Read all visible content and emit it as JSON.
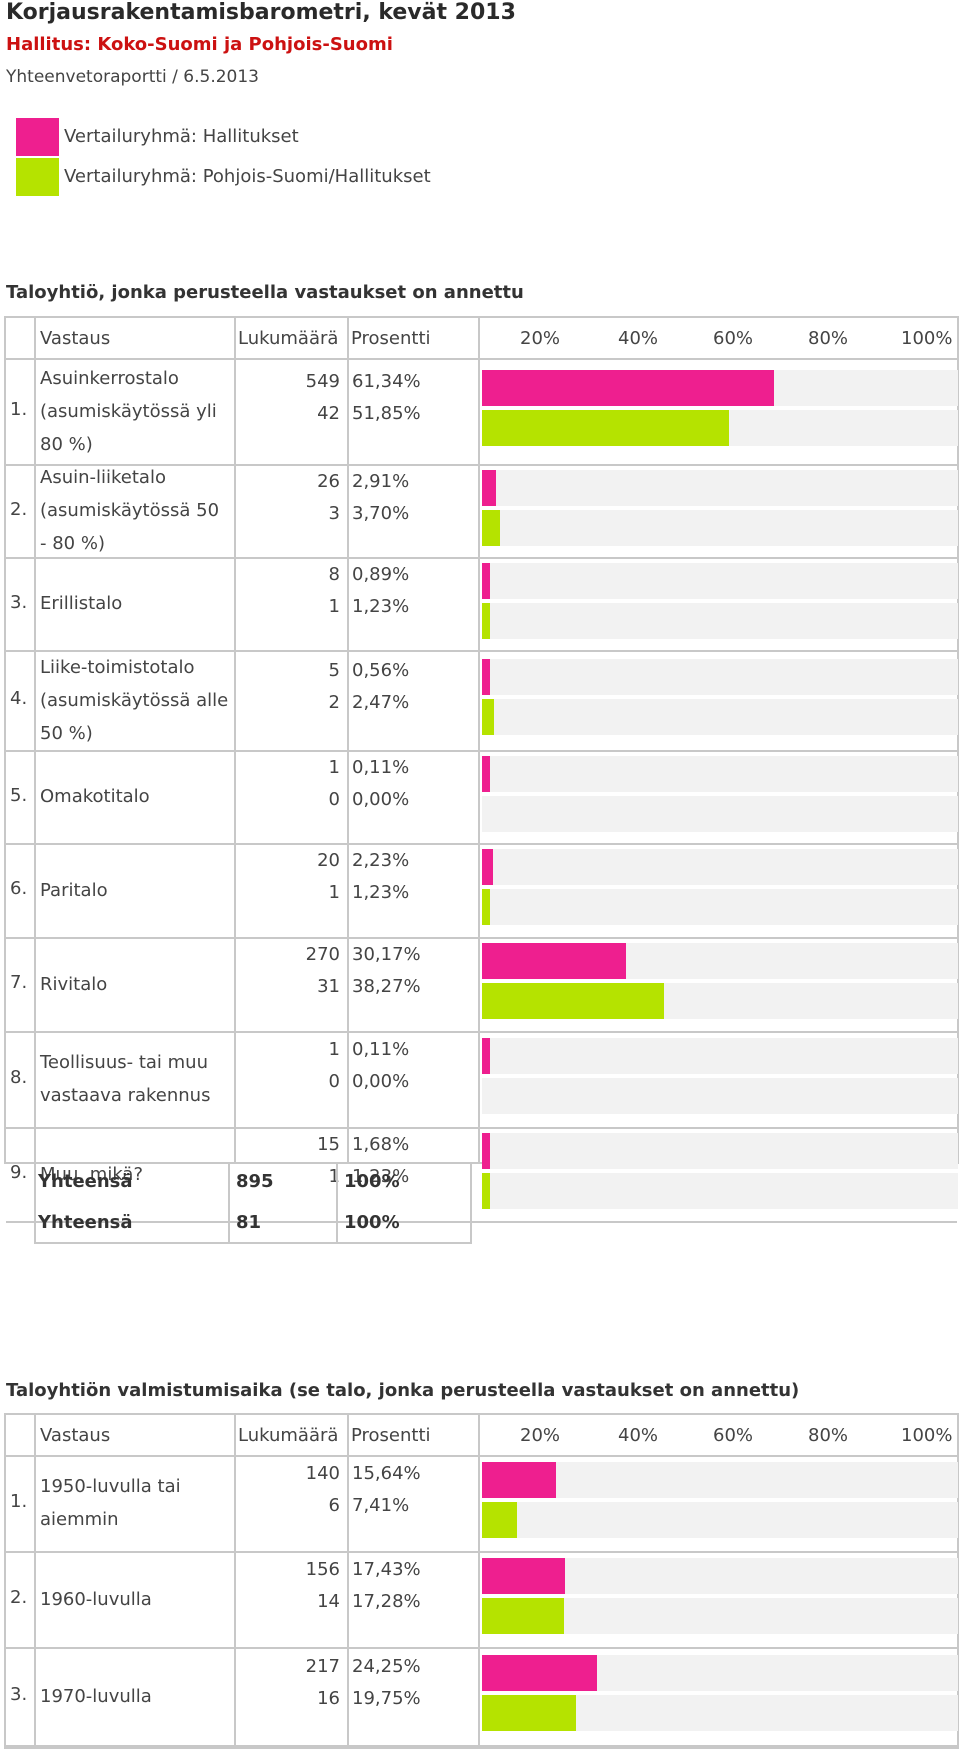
{
  "title": "Korjausrakentamisbarometri, kevät 2013",
  "subtitle": "Hallitus: Koko-Suomi ja Pohjois-Suomi",
  "report_line": "Yhteenvetoraportti / 6.5.2013",
  "legend": [
    {
      "label": "Vertailuryhmä: Hallitukset",
      "color": "#ee1f8f"
    },
    {
      "label": "Vertailuryhmä: Pohjois-Suomi/Hallitukset",
      "color": "#b5e300"
    }
  ],
  "headers": {
    "answer": "Vastaus",
    "count": "Lukumäärä",
    "percent": "Prosentti",
    "scale": [
      "20%",
      "40%",
      "60%",
      "80%",
      "100%"
    ]
  },
  "colors": {
    "series1": "#ee1f8f",
    "series2": "#b5e300",
    "track": "#f2f2f2",
    "border": "#c8c8c8",
    "subtitle": "#cc1111"
  },
  "section1": {
    "title": "Taloyhtiö, jonka perusteella vastaukset on annettu",
    "rows": [
      {
        "num": "1.",
        "answer": "Asuinkerrostalo (asumiskäytössä yli 80 %)",
        "c1": "549",
        "p1": "61,34%",
        "v1": 61.34,
        "c2": "42",
        "p2": "51,85%",
        "v2": 51.85
      },
      {
        "num": "2.",
        "answer": "Asuin-liiketalo (asumiskäytössä 50 - 80 %)",
        "c1": "26",
        "p1": "2,91%",
        "v1": 2.91,
        "c2": "3",
        "p2": "3,70%",
        "v2": 3.7
      },
      {
        "num": "3.",
        "answer": "Erillistalo",
        "c1": "8",
        "p1": "0,89%",
        "v1": 0.89,
        "c2": "1",
        "p2": "1,23%",
        "v2": 1.23
      },
      {
        "num": "4.",
        "answer": "Liike-toimistotalo (asumiskäytössä alle 50 %)",
        "c1": "5",
        "p1": "0,56%",
        "v1": 0.56,
        "c2": "2",
        "p2": "2,47%",
        "v2": 2.47
      },
      {
        "num": "5.",
        "answer": "Omakotitalo",
        "c1": "1",
        "p1": "0,11%",
        "v1": 0.11,
        "c2": "0",
        "p2": "0,00%",
        "v2": 0
      },
      {
        "num": "6.",
        "answer": "Paritalo",
        "c1": "20",
        "p1": "2,23%",
        "v1": 2.23,
        "c2": "1",
        "p2": "1,23%",
        "v2": 1.23
      },
      {
        "num": "7.",
        "answer": "Rivitalo",
        "c1": "270",
        "p1": "30,17%",
        "v1": 30.17,
        "c2": "31",
        "p2": "38,27%",
        "v2": 38.27
      },
      {
        "num": "8.",
        "answer": "Teollisuus- tai muu vastaava rakennus",
        "c1": "1",
        "p1": "0,11%",
        "v1": 0.11,
        "c2": "0",
        "p2": "0,00%",
        "v2": 0
      },
      {
        "num": "9.",
        "answer": "Muu, mikä?",
        "c1": "15",
        "p1": "1,68%",
        "v1": 1.68,
        "c2": "1",
        "p2": "1,23%",
        "v2": 1.23
      }
    ],
    "totals": [
      {
        "label": "Yhteensä",
        "count": "895",
        "percent": "100%"
      },
      {
        "label": "Yhteensä",
        "count": "81",
        "percent": "100%"
      }
    ]
  },
  "section2": {
    "title": "Taloyhtiön valmistumisaika (se talo, jonka perusteella vastaukset on annettu)",
    "rows": [
      {
        "num": "1.",
        "answer": "1950-luvulla tai aiemmin",
        "c1": "140",
        "p1": "15,64%",
        "v1": 15.64,
        "c2": "6",
        "p2": "7,41%",
        "v2": 7.41
      },
      {
        "num": "2.",
        "answer": "1960-luvulla",
        "c1": "156",
        "p1": "17,43%",
        "v1": 17.43,
        "c2": "14",
        "p2": "17,28%",
        "v2": 17.28
      },
      {
        "num": "3.",
        "answer": "1970-luvulla",
        "c1": "217",
        "p1": "24,25%",
        "v1": 24.25,
        "c2": "16",
        "p2": "19,75%",
        "v2": 19.75
      }
    ]
  }
}
